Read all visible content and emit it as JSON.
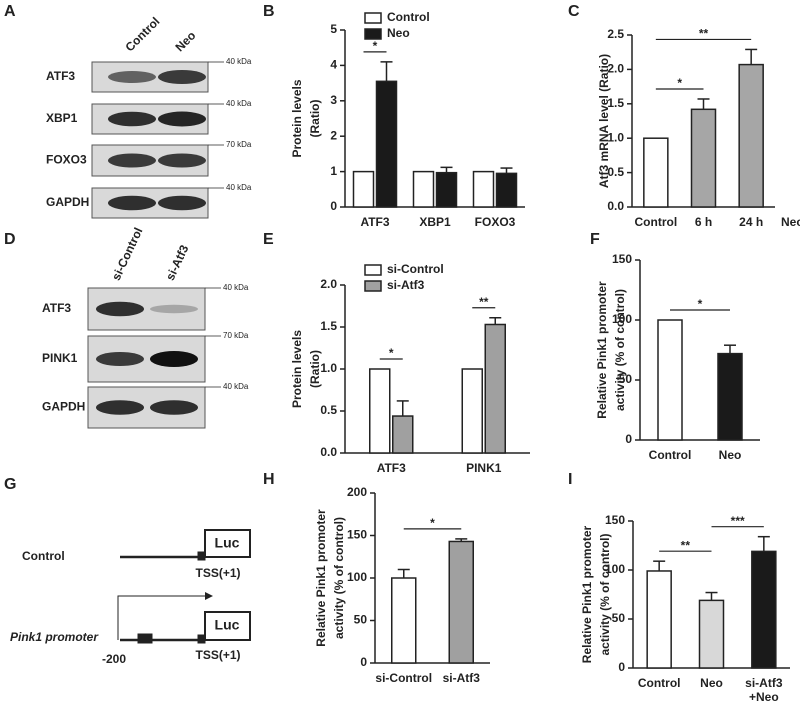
{
  "blots": [
    {
      "panel": "A",
      "lanes": [
        "Control",
        "Neo"
      ],
      "rows": [
        {
          "label": "ATF3",
          "marker": "40 kDa"
        },
        {
          "label": "XBP1",
          "marker": "40 kDa"
        },
        {
          "label": "FOXO3",
          "marker": "70 kDa"
        },
        {
          "label": "GAPDH",
          "marker": "40 kDa"
        }
      ]
    },
    {
      "panel": "D",
      "lanes": [
        "si-Control",
        "si-Atf3"
      ],
      "rows": [
        {
          "label": "ATF3",
          "marker": "40 kDa"
        },
        {
          "label": "PINK1",
          "marker": "70 kDa"
        },
        {
          "label": "GAPDH",
          "marker": "40 kDa"
        }
      ]
    }
  ],
  "diagram": {
    "panel": "G",
    "constructs": [
      {
        "label": "Control",
        "reporter": "Luc",
        "tss": "TSS(+1)"
      },
      {
        "label": "Pink1 promoter",
        "reporter": "Luc",
        "tss": "TSS(+1)",
        "start": "-200"
      }
    ]
  },
  "chart_data": [
    {
      "type": "bar",
      "panel": "B",
      "ylabel": [
        "Protein  levels",
        "(Ratio)"
      ],
      "categories": [
        "ATF3",
        "XBP1",
        "FOXO3"
      ],
      "series": [
        {
          "name": "Control",
          "color": "#ffffff",
          "values": [
            1,
            1,
            1
          ],
          "errors": [
            null,
            null,
            null
          ]
        },
        {
          "name": "Neo",
          "color": "#1a1a1a",
          "values": [
            3.55,
            0.97,
            0.95
          ],
          "errors": [
            0.55,
            0.15,
            0.15
          ]
        }
      ],
      "ylim": [
        0,
        5
      ],
      "yticks": [
        0,
        1,
        2,
        3,
        4,
        5
      ],
      "legend": "upper left",
      "significance": [
        {
          "text": "*",
          "category": "ATF3"
        }
      ]
    },
    {
      "type": "bar",
      "panel": "C",
      "ylabel": [
        "Atf3 mRNA level (Ratio)"
      ],
      "categories": [
        "Control",
        "6 h",
        "24 h"
      ],
      "values": [
        1,
        1.42,
        2.07
      ],
      "errors": [
        null,
        0.15,
        0.22
      ],
      "colors": [
        "#ffffff",
        "#a6a6a6",
        "#a6a6a6"
      ],
      "ylim": [
        0,
        2.5
      ],
      "yticks": [
        {
          "value": 0,
          "label": "0.0"
        },
        {
          "value": 0.5,
          "label": "0.5"
        },
        {
          "value": 1,
          "label": "1.0"
        },
        {
          "value": 1.5,
          "label": "1.5"
        },
        {
          "value": 2,
          "label": "2.0"
        },
        {
          "value": 2.5,
          "label": "2.5"
        }
      ],
      "x_note": "Neo",
      "significance": [
        {
          "text": "*",
          "between": [
            "Control",
            "6 h"
          ]
        },
        {
          "text": "**",
          "between": [
            "Control",
            "24 h"
          ]
        }
      ]
    },
    {
      "type": "bar",
      "panel": "E",
      "ylabel": [
        "Protein  levels",
        "(Ratio)"
      ],
      "categories": [
        "ATF3",
        "PINK1"
      ],
      "series": [
        {
          "name": "si-Control",
          "color": "#ffffff",
          "values": [
            1,
            1
          ],
          "errors": [
            null,
            null
          ]
        },
        {
          "name": "si-Atf3",
          "color": "#a0a0a0",
          "values": [
            0.44,
            1.53
          ],
          "errors": [
            0.18,
            0.08
          ]
        }
      ],
      "ylim": [
        0,
        2
      ],
      "yticks": [
        {
          "value": 0,
          "label": "0.0"
        },
        {
          "value": 0.5,
          "label": "0.5"
        },
        {
          "value": 1,
          "label": "1.0"
        },
        {
          "value": 1.5,
          "label": "1.5"
        },
        {
          "value": 2,
          "label": "2.0"
        }
      ],
      "legend": "upper left",
      "significance": [
        {
          "text": "*",
          "category": "ATF3"
        },
        {
          "text": "**",
          "category": "PINK1"
        }
      ]
    },
    {
      "type": "bar",
      "panel": "F",
      "ylabel": [
        "Relative Pink1 promoter",
        "activity (% of control)"
      ],
      "categories": [
        "Control",
        "Neo"
      ],
      "values": [
        100,
        72
      ],
      "errors": [
        null,
        7
      ],
      "colors": [
        "#ffffff",
        "#1a1a1a"
      ],
      "ylim": [
        0,
        150
      ],
      "yticks": [
        0,
        50,
        100,
        150
      ],
      "significance": [
        {
          "text": "*",
          "between": [
            "Control",
            "Neo"
          ]
        }
      ]
    },
    {
      "type": "bar",
      "panel": "H",
      "ylabel": [
        "Relative Pink1 promoter",
        "activity (% of control)"
      ],
      "categories": [
        "si-Control",
        "si-Atf3"
      ],
      "values": [
        100,
        143
      ],
      "errors": [
        10,
        3
      ],
      "colors": [
        "#ffffff",
        "#a0a0a0"
      ],
      "ylim": [
        0,
        200
      ],
      "yticks": [
        0,
        50,
        100,
        150,
        200
      ],
      "significance": [
        {
          "text": "*",
          "between": [
            "si-Control",
            "si-Atf3"
          ]
        }
      ]
    },
    {
      "type": "bar",
      "panel": "I",
      "ylabel": [
        "Relative Pink1 promoter",
        "activity (% of control)"
      ],
      "categories": [
        "Control",
        "Neo",
        [
          "si-Atf3",
          "+Neo"
        ]
      ],
      "values": [
        99,
        69,
        119
      ],
      "errors": [
        10,
        8,
        15
      ],
      "colors": [
        "#ffffff",
        "#d8d8d8",
        "#1a1a1a"
      ],
      "ylim": [
        0,
        150
      ],
      "yticks": [
        0,
        50,
        100,
        150
      ],
      "significance": [
        {
          "text": "**",
          "between": [
            0,
            1
          ]
        },
        {
          "text": "***",
          "between": [
            1,
            2
          ]
        }
      ]
    }
  ]
}
